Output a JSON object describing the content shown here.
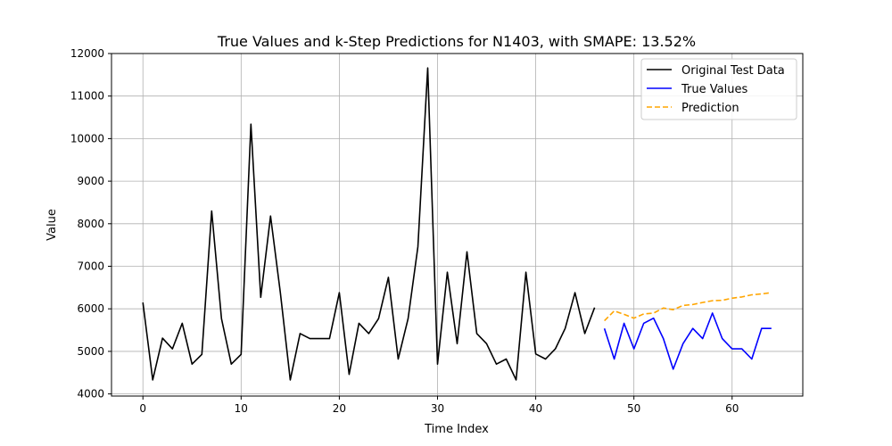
{
  "chart_data": {
    "type": "line",
    "title": "True Values and k-Step Predictions for N1403, with SMAPE: 13.52%",
    "xlabel": "Time Index",
    "ylabel": "Value",
    "xlim": [
      -3.2,
      67.2
    ],
    "ylim": [
      3950,
      12000
    ],
    "xticks": [
      0,
      10,
      20,
      30,
      40,
      50,
      60
    ],
    "yticks": [
      4000,
      5000,
      6000,
      7000,
      8000,
      9000,
      10000,
      11000,
      12000
    ],
    "grid": true,
    "legend_position": "top-right",
    "series": [
      {
        "name": "Original Test Data",
        "color": "#000000",
        "style": "solid",
        "x": [
          0,
          1,
          2,
          3,
          4,
          5,
          6,
          7,
          8,
          9,
          10,
          11,
          12,
          13,
          14,
          15,
          16,
          17,
          18,
          19,
          20,
          21,
          22,
          23,
          24,
          25,
          26,
          27,
          28,
          29,
          30,
          31,
          32,
          33,
          34,
          35,
          36,
          37,
          38,
          39,
          40,
          41,
          42,
          43,
          44,
          45,
          46
        ],
        "values": [
          6150,
          4330,
          5310,
          5060,
          5660,
          4700,
          4930,
          8300,
          5770,
          4700,
          4930,
          10340,
          6270,
          8180,
          6380,
          4330,
          5420,
          5300,
          5300,
          5300,
          6380,
          4460,
          5660,
          5420,
          5770,
          6740,
          4820,
          5770,
          7460,
          11660,
          4700,
          6860,
          5180,
          7340,
          5420,
          5180,
          4700,
          4820,
          4330,
          6860,
          4940,
          4820,
          5060,
          5540,
          6380,
          5420,
          6030
        ]
      },
      {
        "name": "True Values",
        "color": "#0000ff",
        "style": "solid",
        "x": [
          47,
          48,
          49,
          50,
          51,
          52,
          53,
          54,
          55,
          56,
          57,
          58,
          59,
          60,
          61,
          62,
          63,
          64
        ],
        "values": [
          5540,
          4820,
          5660,
          5060,
          5660,
          5780,
          5300,
          4580,
          5180,
          5540,
          5300,
          5900,
          5300,
          5060,
          5060,
          4820,
          5540,
          5540
        ]
      },
      {
        "name": "Prediction",
        "color": "#ffa500",
        "style": "dashed",
        "x": [
          47,
          48,
          49,
          50,
          51,
          52,
          53,
          54,
          55,
          56,
          57,
          58,
          59,
          60,
          61,
          62,
          63,
          64
        ],
        "values": [
          5720,
          5950,
          5870,
          5780,
          5880,
          5900,
          6020,
          5980,
          6080,
          6100,
          6150,
          6190,
          6200,
          6250,
          6280,
          6330,
          6350,
          6380
        ]
      }
    ]
  }
}
